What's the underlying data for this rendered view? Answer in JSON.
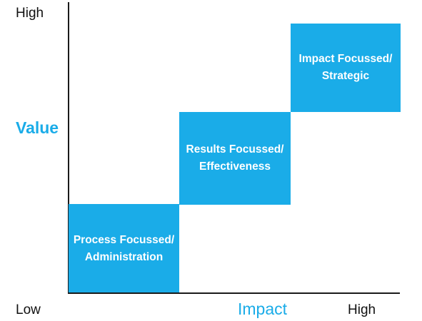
{
  "y_axis": {
    "label": "Value",
    "high": "High"
  },
  "x_axis": {
    "label": "Impact",
    "low": "Low",
    "high": "High"
  },
  "steps": [
    {
      "line1": "Process Focussed/",
      "line2": "Administration"
    },
    {
      "line1": "Results Focussed/",
      "line2": "Effectiveness"
    },
    {
      "line1": "Impact Focussed/",
      "line2": "Strategic"
    }
  ],
  "colors": {
    "accent": "#1aace8",
    "box_text": "#ffffff",
    "axis": "#1a1a1a",
    "text": "#111111"
  }
}
